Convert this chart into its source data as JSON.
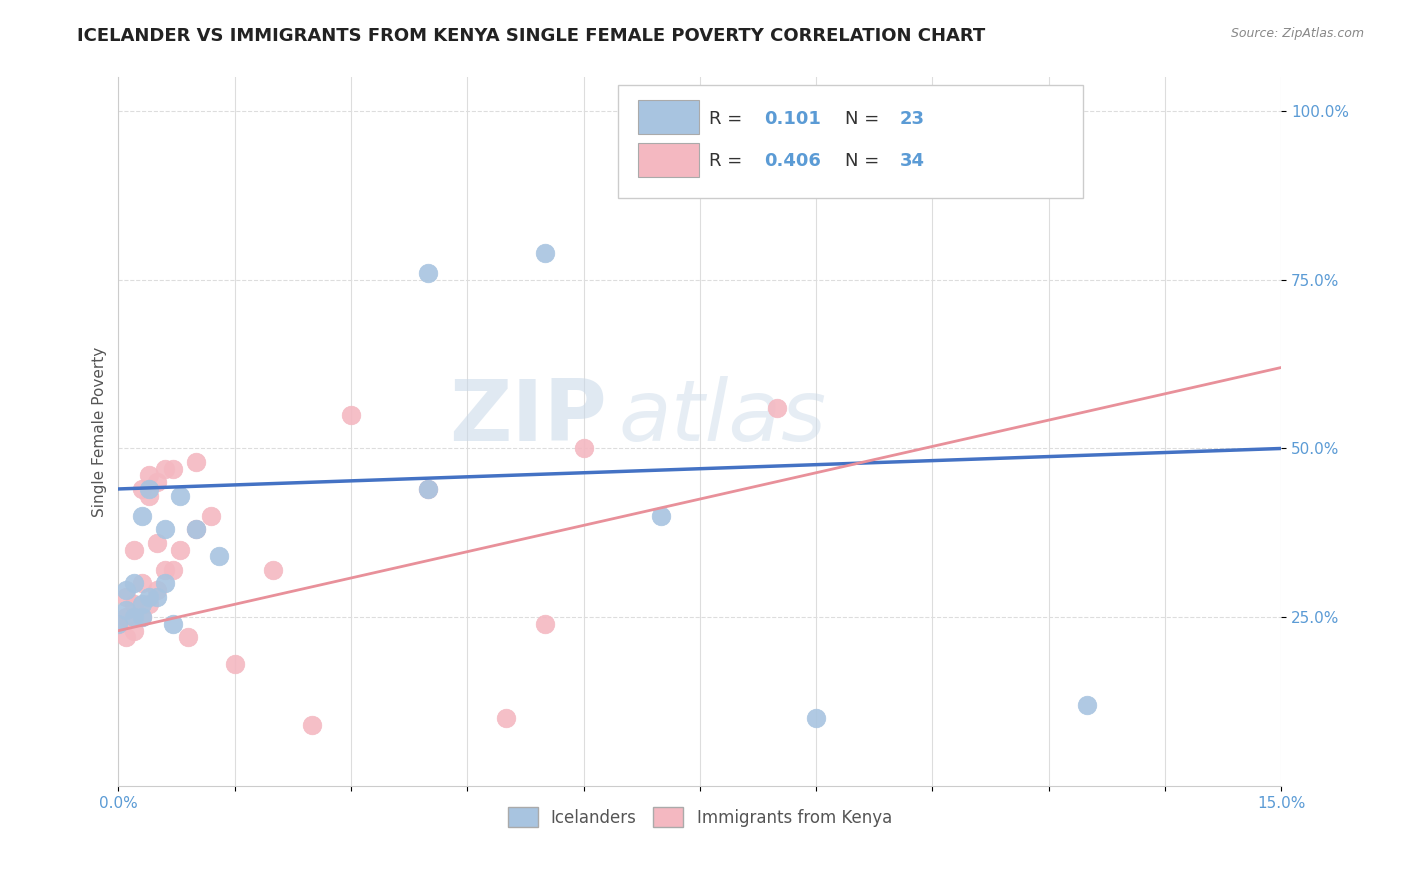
{
  "title": "ICELANDER VS IMMIGRANTS FROM KENYA SINGLE FEMALE POVERTY CORRELATION CHART",
  "source": "Source: ZipAtlas.com",
  "ylabel": "Single Female Poverty",
  "xlim": [
    0.0,
    0.15
  ],
  "ylim": [
    0.0,
    1.05
  ],
  "xticks": [
    0.0,
    0.015,
    0.03,
    0.045,
    0.06,
    0.075,
    0.09,
    0.105,
    0.12,
    0.135,
    0.15
  ],
  "xticklabels": [
    "0.0%",
    "",
    "",
    "",
    "",
    "",
    "",
    "",
    "",
    "",
    "15.0%"
  ],
  "ytick_positions": [
    0.25,
    0.5,
    0.75,
    1.0
  ],
  "yticklabels": [
    "25.0%",
    "50.0%",
    "75.0%",
    "100.0%"
  ],
  "legend_r_blue": "0.101",
  "legend_n_blue": "23",
  "legend_r_pink": "0.406",
  "legend_n_pink": "34",
  "blue_color": "#a8c4e0",
  "pink_color": "#f4b8c1",
  "trendline_blue_color": "#4472c4",
  "trendline_pink_color": "#e8909a",
  "blue_points_x": [
    0.0,
    0.001,
    0.001,
    0.002,
    0.002,
    0.003,
    0.003,
    0.003,
    0.004,
    0.004,
    0.005,
    0.006,
    0.006,
    0.007,
    0.008,
    0.01,
    0.013,
    0.04,
    0.04,
    0.055,
    0.07,
    0.09,
    0.125
  ],
  "blue_points_y": [
    0.24,
    0.26,
    0.29,
    0.25,
    0.3,
    0.25,
    0.27,
    0.4,
    0.28,
    0.44,
    0.28,
    0.3,
    0.38,
    0.24,
    0.43,
    0.38,
    0.34,
    0.44,
    0.76,
    0.79,
    0.4,
    0.1,
    0.12
  ],
  "pink_points_x": [
    0.0,
    0.001,
    0.001,
    0.001,
    0.002,
    0.002,
    0.002,
    0.003,
    0.003,
    0.003,
    0.004,
    0.004,
    0.004,
    0.005,
    0.005,
    0.005,
    0.006,
    0.006,
    0.007,
    0.007,
    0.008,
    0.009,
    0.01,
    0.01,
    0.012,
    0.015,
    0.02,
    0.025,
    0.03,
    0.04,
    0.05,
    0.055,
    0.06,
    0.085
  ],
  "pink_points_y": [
    0.24,
    0.22,
    0.25,
    0.28,
    0.23,
    0.27,
    0.35,
    0.25,
    0.3,
    0.44,
    0.27,
    0.43,
    0.46,
    0.29,
    0.36,
    0.45,
    0.32,
    0.47,
    0.32,
    0.47,
    0.35,
    0.22,
    0.38,
    0.48,
    0.4,
    0.18,
    0.32,
    0.09,
    0.55,
    0.44,
    0.1,
    0.24,
    0.5,
    0.56
  ],
  "blue_trend_x": [
    0.0,
    0.15
  ],
  "blue_trend_y": [
    0.44,
    0.5
  ],
  "pink_trend_x": [
    0.0,
    0.15
  ],
  "pink_trend_y": [
    0.23,
    0.62
  ],
  "background_color": "#ffffff",
  "grid_color": "#dddddd",
  "title_fontsize": 13,
  "axis_label_fontsize": 11,
  "tick_fontsize": 11,
  "marker_size": 180
}
